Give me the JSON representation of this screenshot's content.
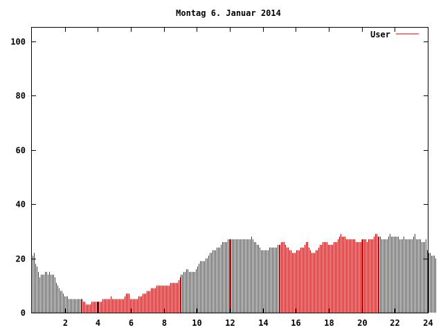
{
  "chart_data": {
    "type": "bar",
    "title": "Montag 6. Januar 2014",
    "xlabel": "",
    "ylabel": "",
    "xlim": [
      0,
      24
    ],
    "ylim": [
      0,
      105
    ],
    "xticks": [
      2,
      4,
      6,
      8,
      10,
      12,
      14,
      16,
      18,
      20,
      22,
      24
    ],
    "yticks": [
      0,
      20,
      40,
      60,
      80,
      100
    ],
    "grid": false,
    "legend_position": "top-right",
    "series": [
      {
        "name": "User",
        "color": "#cc0000",
        "bin_minutes": 5,
        "values": [
          21,
          22,
          18,
          17,
          15,
          13,
          14,
          14,
          14,
          15,
          15,
          14,
          15,
          14,
          14,
          14,
          13,
          11,
          10,
          9,
          8,
          8,
          7,
          6,
          6,
          6,
          5,
          5,
          5,
          5,
          5,
          5,
          5,
          5,
          5,
          5,
          5,
          4,
          4,
          3,
          3,
          3,
          3,
          4,
          4,
          4,
          4,
          4,
          4,
          4,
          4,
          5,
          5,
          5,
          5,
          5,
          5,
          6,
          5,
          5,
          5,
          5,
          5,
          5,
          5,
          5,
          5,
          6,
          7,
          7,
          7,
          5,
          5,
          5,
          5,
          5,
          5,
          6,
          6,
          6,
          7,
          7,
          7,
          8,
          8,
          8,
          9,
          9,
          9,
          9,
          10,
          10,
          10,
          10,
          10,
          10,
          10,
          10,
          10,
          10,
          11,
          11,
          11,
          11,
          11,
          11,
          12,
          13,
          14,
          14,
          15,
          15,
          16,
          16,
          15,
          15,
          15,
          15,
          15,
          16,
          17,
          18,
          19,
          19,
          19,
          19,
          20,
          20,
          21,
          22,
          22,
          23,
          23,
          23,
          24,
          24,
          24,
          25,
          26,
          26,
          26,
          26,
          27,
          27,
          27,
          27,
          27,
          27,
          27,
          27,
          27,
          27,
          27,
          27,
          27,
          27,
          27,
          27,
          27,
          28,
          27,
          26,
          26,
          25,
          25,
          24,
          23,
          23,
          23,
          23,
          23,
          23,
          24,
          24,
          24,
          24,
          24,
          24,
          25,
          25,
          25,
          26,
          26,
          26,
          25,
          24,
          24,
          23,
          23,
          22,
          22,
          22,
          23,
          23,
          23,
          24,
          24,
          24,
          25,
          26,
          26,
          24,
          23,
          22,
          22,
          22,
          23,
          23,
          24,
          25,
          25,
          26,
          26,
          26,
          26,
          25,
          25,
          25,
          25,
          26,
          26,
          26,
          27,
          28,
          29,
          28,
          28,
          28,
          27,
          27,
          27,
          27,
          27,
          27,
          27,
          26,
          26,
          26,
          26,
          26,
          27,
          27,
          27,
          26,
          27,
          27,
          27,
          27,
          28,
          29,
          29,
          28,
          28,
          28,
          27,
          27,
          27,
          27,
          27,
          28,
          29,
          28,
          28,
          28,
          28,
          28,
          28,
          27,
          27,
          27,
          28,
          27,
          27,
          27,
          27,
          27,
          27,
          28,
          29,
          27,
          27,
          27,
          27,
          26,
          26,
          26,
          27,
          23,
          22,
          22,
          21,
          21,
          21,
          20
        ]
      }
    ],
    "highlight_x": [
      4,
      12,
      20
    ]
  }
}
